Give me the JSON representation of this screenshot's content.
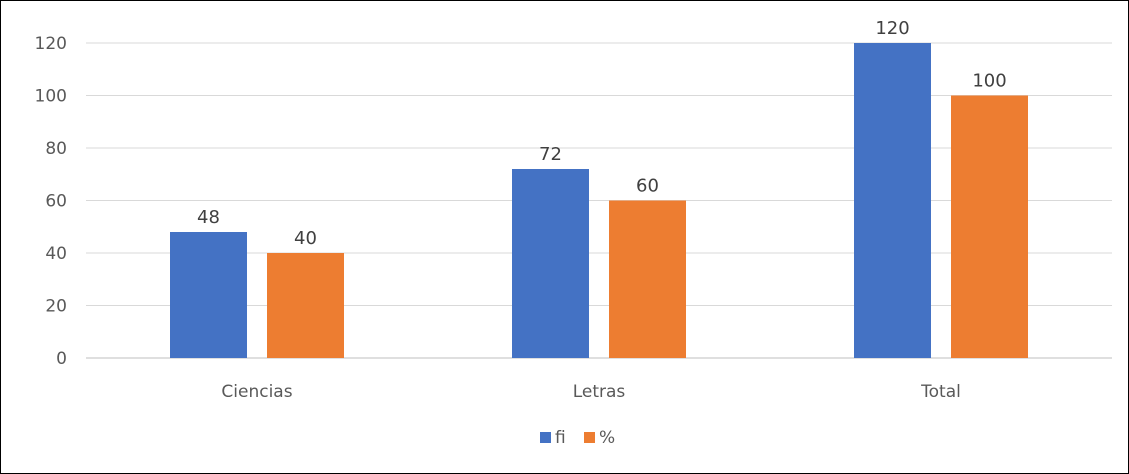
{
  "chart_data": {
    "type": "bar",
    "title": "",
    "xlabel": "",
    "ylabel": "",
    "categories": [
      "Ciencias",
      "Letras",
      "Total"
    ],
    "series": [
      {
        "name": "fi",
        "values": [
          48,
          72,
          120
        ],
        "color": "#4472C4"
      },
      {
        "name": "%",
        "values": [
          40,
          60,
          100
        ],
        "color": "#ED7D31"
      }
    ],
    "ylim": [
      0,
      120
    ],
    "yticks": [
      0,
      20,
      40,
      60,
      80,
      100,
      120
    ],
    "grid": true,
    "legend": "bottom-center",
    "data_labels": true
  }
}
